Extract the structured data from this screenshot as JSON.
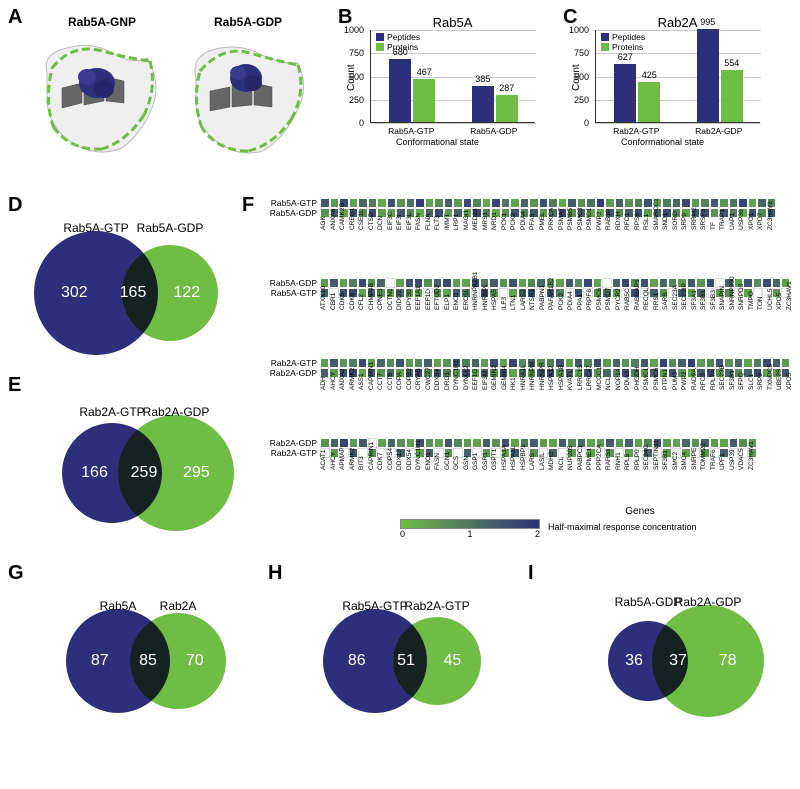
{
  "colors": {
    "blue": "#2e2f7a",
    "green": "#6fbd45",
    "gray": "#4a4a4a",
    "grid": "#cccccc",
    "text": "#222222",
    "ribbon_gray": "#888888",
    "ribbon_light": "#e0e0e0"
  },
  "panelA": {
    "label": "A",
    "left_title": "Rab5A-GNP",
    "right_title": "Rab5A-GDP"
  },
  "panelB": {
    "label": "B",
    "title": "Rab5A",
    "y_label": "Count",
    "y_max": 1000,
    "y_ticks": [
      0,
      250,
      500,
      750,
      1000
    ],
    "legend": [
      "Peptides",
      "Proteins"
    ],
    "categories": [
      "Rab5A-GTP",
      "Rab5A-GDP"
    ],
    "x_title": "Conformational state",
    "bars": [
      {
        "cat": 0,
        "series": 0,
        "value": 680,
        "label": "680"
      },
      {
        "cat": 0,
        "series": 1,
        "value": 467,
        "label": "467"
      },
      {
        "cat": 1,
        "series": 0,
        "value": 385,
        "label": "385"
      },
      {
        "cat": 1,
        "series": 1,
        "value": 287,
        "label": "287"
      }
    ]
  },
  "panelC": {
    "label": "C",
    "title": "Rab2A",
    "y_label": "Count",
    "y_max": 1000,
    "y_ticks": [
      0,
      250,
      500,
      750,
      1000
    ],
    "legend": [
      "Peptides",
      "Proteins"
    ],
    "categories": [
      "Rab2A-GTP",
      "Rab2A-GDP"
    ],
    "x_title": "Conformational state",
    "bars": [
      {
        "cat": 0,
        "series": 0,
        "value": 627,
        "label": "627"
      },
      {
        "cat": 0,
        "series": 1,
        "value": 425,
        "label": "425"
      },
      {
        "cat": 1,
        "series": 0,
        "value": 995,
        "label": "995"
      },
      {
        "cat": 1,
        "series": 1,
        "value": 554,
        "label": "554"
      }
    ]
  },
  "panelD": {
    "label": "D",
    "left_title": "Rab5A-GTP",
    "right_title": "Rab5A-GDP",
    "left_n": "302",
    "mid_n": "165",
    "right_n": "122",
    "left_r": 62,
    "right_r": 48,
    "overlap": 36
  },
  "panelE": {
    "label": "E",
    "left_title": "Rab2A-GTP",
    "right_title": "Rab2A-GDP",
    "left_n": "166",
    "mid_n": "259",
    "right_n": "295",
    "left_r": 50,
    "right_r": 58,
    "overlap": 44
  },
  "panelF": {
    "label": "F",
    "x_title": "Genes",
    "legend_title": "Half-maximal response concentration",
    "legend_ticks": [
      "0",
      "1",
      "2"
    ],
    "blocks": [
      {
        "row_labels": [
          "Rab5A-GTP",
          "Rab5A-GDP"
        ],
        "genes": [
          "AGK",
          "ANXA6",
          "CAMK2G",
          "CREG1",
          "CSE1L",
          "CTSD",
          "DCN",
          "EIF3C",
          "EIF3I",
          "EIF3L",
          "FASN",
          "FLNA",
          "FLT3",
          "IMMT",
          "LRP1",
          "MAGI1",
          "MED23",
          "MRS1",
          "NRD1",
          "PCK1",
          "PCK2",
          "PDIA4",
          "PFAS",
          "PMEL",
          "PRKCA",
          "PSMA7",
          "PSMB5",
          "PSMC3",
          "PSMD1",
          "PWP2",
          "RAB10",
          "RDXH",
          "RFC1",
          "RPS6",
          "RSL1",
          "SMARCC1",
          "SND1",
          "SORD",
          "SRP9",
          "SRRM2",
          "SRSF3",
          "TF",
          "TRAP1",
          "UAP1",
          "USP39",
          "XPO1",
          "XPO7",
          "ZC3HAV1"
        ],
        "values": [
          [
            1.4,
            0.5,
            1.6,
            0.4,
            1.2,
            0.9,
            0.3,
            1.5,
            0.6,
            1.1,
            1.8,
            0.4,
            0.7,
            1.3,
            0.5,
            1.6,
            0.8,
            0.3,
            1.7,
            1.0,
            0.4,
            1.2,
            0.6,
            1.5,
            0.9,
            0.3,
            1.4,
            0.7,
            1.1,
            1.8,
            0.5,
            1.3,
            0.6,
            0.9,
            1.5,
            0.4,
            0.9,
            1.2,
            1.6,
            0.5,
            0.8,
            1.4,
            0.6,
            1.0,
            1.7,
            0.4,
            1.2,
            0.8
          ],
          [
            0.6,
            1.3,
            0.4,
            1.5,
            0.7,
            1.6,
            0.5,
            0.4,
            1.4,
            0.8,
            0.3,
            1.2,
            1.6,
            0.5,
            1.3,
            0.4,
            1.7,
            0.9,
            0.3,
            0.6,
            1.5,
            0.8,
            1.4,
            0.5,
            1.1,
            1.7,
            0.6,
            1.3,
            0.4,
            0.3,
            1.5,
            0.7,
            1.4,
            1.6,
            0.5,
            1.2,
            1.6,
            0.8,
            0.4,
            1.3,
            1.6,
            0.6,
            1.4,
            0.9,
            0.3,
            1.5,
            0.7,
            1.5
          ]
        ]
      },
      {
        "row_labels": [
          "Rab5A-GDP",
          "Rab5A-GTP"
        ],
        "genes": [
          "ATXN10",
          "CBR1",
          "CDK5",
          "CDK9",
          "CFL2",
          "CHMP4B",
          "CPNE3",
          "DCTN1",
          "DIDO1",
          "DPY30",
          "EEF1A1",
          "EEF1D",
          "EFTUD2",
          "ELP1",
          "ENO1",
          "ERO1L",
          "HNRNPA2B1",
          "HNRNPL",
          "HSPA5",
          "ILF3",
          "LTN1",
          "LARS2",
          "NTSR1",
          "PABPN1",
          "PAFAH1B2",
          "PCK2",
          "PDIA4",
          "PPA1",
          "PRPF6",
          "PSMC6",
          "PSMD7",
          "PYCR2",
          "RAB5C",
          "RABGAP1",
          "RECQL",
          "RRS1",
          "SARS",
          "SEC23A",
          "SEC23IP",
          "SF3A1",
          "SF3B1",
          "SF3B3",
          "SNAPIN",
          "SNRNP200",
          "SNRPD3",
          "TMPO",
          "TON",
          "UCHL5",
          "XPO5",
          "ZC3HAV1"
        ],
        "values": [
          [
            0.5,
            1.4,
            0.4,
            0.9,
            1.6,
            0.6,
            1.2,
            null,
            0.4,
            1.5,
            1.6,
            0.7,
            1.3,
            1.6,
            0.5,
            0.4,
            1.6,
            0.9,
            1.3,
            0.6,
            1.5,
            0.4,
            0.8,
            1.2,
            0.5,
            0.4,
            1.4,
            0.7,
            1.6,
            0.4,
            null,
            1.3,
            1.7,
            0.6,
            1.5,
            0.4,
            1.2,
            0.8,
            0.5,
            1.4,
            0.6,
            1.6,
            null,
            1.3,
            0.4,
            1.5,
            0.7,
            1.6,
            1.2,
            0.4
          ],
          [
            1.3,
            null,
            1.5,
            1.6,
            0.4,
            1.4,
            0.6,
            0.4,
            1.2,
            0.5,
            0.4,
            null,
            0.7,
            0.4,
            1.4,
            0.9,
            null,
            1.6,
            0.5,
            null,
            0.4,
            1.2,
            1.5,
            null,
            1.4,
            0.9,
            null,
            1.6,
            null,
            0.5,
            1.1,
            0.4,
            null,
            1.5,
            null,
            1.3,
            0.6,
            null,
            1.4,
            0.5,
            1.2,
            null,
            0.4,
            0.7,
            null,
            0.4,
            null,
            null,
            0.5,
            null
          ]
        ]
      },
      {
        "row_labels": [
          "Rab2A-GTP",
          "Rab2A-GDP"
        ],
        "genes": [
          "ADH",
          "AHCY",
          "ANXA2",
          "ARMK2",
          "ASS1",
          "CAPRIN1",
          "CCT7",
          "CCT8",
          "COPA",
          "COPB2",
          "CRYAB",
          "CWC27",
          "DDX54",
          "DRG1",
          "DYNC1H1",
          "DYNLL2",
          "EEF1G",
          "EIF3M",
          "GEMIN2",
          "GEMIN4",
          "HK1",
          "HNRA1L",
          "HNRNPM",
          "HNRNPR",
          "HSPA12",
          "HSPA1B",
          "KVAT1",
          "LRRC15",
          "LRRC47",
          "MCCC1",
          "NCL",
          "NOP14",
          "PDIA3",
          "PHGDH",
          "PSMC1",
          "PSMC6",
          "PTPN1",
          "PUM3",
          "PWP2",
          "RAD9A",
          "RFC3",
          "RPL7A",
          "SEC23B",
          "SF3B1",
          "SFPQ",
          "SLC1",
          "SRP9",
          "TXNDC5",
          "UBE2S",
          "XPO5"
        ],
        "values": [
          [
            0.5,
            1.4,
            0.6,
            0.9,
            1.6,
            0.4,
            1.2,
            0.7,
            1.5,
            0.5,
            0.8,
            1.3,
            0.4,
            0.6,
            1.5,
            0.9,
            1.2,
            0.5,
            1.6,
            0.4,
            1.7,
            0.7,
            1.3,
            0.6,
            0.9,
            1.5,
            0.4,
            1.4,
            0.8,
            1.6,
            0.5,
            1.2,
            0.6,
            0.9,
            1.4,
            0.4,
            1.7,
            0.7,
            1.3,
            1.8,
            0.5,
            0.8,
            1.5,
            0.6,
            1.2,
            0.4,
            0.9,
            1.6,
            1.3,
            0.5
          ],
          [
            1.3,
            0.5,
            1.5,
            1.6,
            0.4,
            1.4,
            0.6,
            1.2,
            0.5,
            1.3,
            1.6,
            0.7,
            1.4,
            0.9,
            0.5,
            1.6,
            0.4,
            1.3,
            0.6,
            1.5,
            0.4,
            1.2,
            0.5,
            1.4,
            1.6,
            0.6,
            1.3,
            0.4,
            1.5,
            0.5,
            1.2,
            0.7,
            1.6,
            0.9,
            0.5,
            1.3,
            0.4,
            1.5,
            0.6,
            0.4,
            1.4,
            1.6,
            0.5,
            1.2,
            0.7,
            1.3,
            1.6,
            0.4,
            0.5,
            1.4
          ]
        ]
      },
      {
        "row_labels": [
          "Rab2A-GDP",
          "Rab2A-GTP"
        ],
        "genes": [
          "ACAT1",
          "AHCY",
          "APMAP",
          "ARMK2",
          "BIT3",
          "CAPRIN1",
          "CDK7",
          "COPS4",
          "DDX17",
          "DDX54",
          "DYNC1H1",
          "ENO1",
          "FASN",
          "GCN1",
          "GCS",
          "GSN",
          "GSP1",
          "GSR1",
          "GSPT1",
          "HSPA1A",
          "HSPA1L",
          "HSPBP1",
          "LARS",
          "LASIL",
          "MDH2",
          "NCL",
          "NUP205",
          "PABPC1",
          "PPME1",
          "PPP2CA",
          "RARS1",
          "RNH1",
          "RPL5",
          "RPLP0",
          "SEC24C",
          "SEPTIN11",
          "SF3B1",
          "SMC2",
          "SMC4",
          "SNRPE",
          "TOMM22",
          "TRAF6",
          "UPF1",
          "USP39",
          "VDAC5",
          "ZC3HAV1"
        ],
        "values": [
          [
            0.6,
            1.3,
            1.7,
            0.5,
            1.4,
            null,
            0.4,
            1.2,
            0.7,
            0.5,
            1.5,
            0.6,
            0.4,
            1.4,
            0.8,
            0.5,
            0.4,
            1.3,
            0.6,
            1.5,
            0.4,
            0.9,
            1.3,
            0.5,
            0.4,
            1.4,
            0.7,
            1.2,
            0.4,
            0.5,
            1.4,
            0.6,
            1.3,
            0.4,
            0.8,
            1.5,
            0.5,
            0.4,
            1.2,
            0.6,
            1.3,
            0.5,
            0.4,
            1.4,
            0.7,
            0.5
          ],
          [
            null,
            0.5,
            null,
            1.4,
            null,
            0.6,
            null,
            null,
            1.3,
            null,
            0.5,
            1.4,
            null,
            0.6,
            null,
            1.3,
            null,
            0.5,
            null,
            0.4,
            1.4,
            null,
            0.6,
            null,
            1.3,
            null,
            0.5,
            null,
            0.4,
            null,
            0.6,
            null,
            0.4,
            null,
            1.3,
            null,
            0.5,
            null,
            0.4,
            null,
            0.6,
            null,
            1.3,
            null,
            null,
            0.5
          ]
        ]
      }
    ]
  },
  "panelG": {
    "label": "G",
    "left_title": "Rab5A",
    "right_title": "Rab2A",
    "left_n": "87",
    "mid_n": "85",
    "right_n": "70",
    "left_r": 52,
    "right_r": 48,
    "overlap": 40
  },
  "panelH": {
    "label": "H",
    "left_title": "Rab5A-GTP",
    "right_title": "Rab2A-GTP",
    "left_n": "86",
    "mid_n": "51",
    "right_n": "45",
    "left_r": 52,
    "right_r": 44,
    "overlap": 34
  },
  "panelI": {
    "label": "I",
    "left_title": "Rab5A-GDP",
    "right_title": "Rab2A-GDP",
    "left_n": "36",
    "mid_n": "37",
    "right_n": "78",
    "left_r": 40,
    "right_r": 56,
    "overlap": 36
  }
}
